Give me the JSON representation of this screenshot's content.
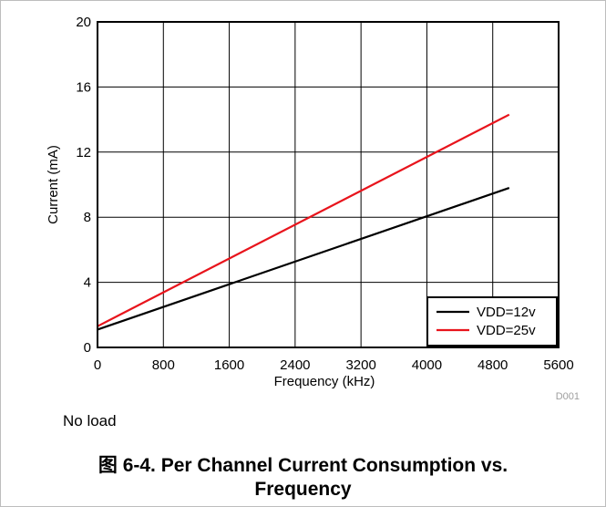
{
  "chart_data": {
    "type": "line",
    "title": "",
    "xlabel": "Frequency (kHz)",
    "ylabel": "Current (mA)",
    "xlim": [
      0,
      5600
    ],
    "ylim": [
      0,
      20
    ],
    "xticks": [
      0,
      800,
      1600,
      2400,
      3200,
      4000,
      4800,
      5600
    ],
    "yticks": [
      0,
      4,
      8,
      12,
      16,
      20
    ],
    "grid": true,
    "legend_position": "bottom-right",
    "series": [
      {
        "name": "VDD=12v",
        "color": "#000000",
        "x": [
          0,
          5000
        ],
        "y": [
          1.1,
          9.8
        ]
      },
      {
        "name": "VDD=25v",
        "color": "#e8141c",
        "x": [
          0,
          5000
        ],
        "y": [
          1.3,
          14.3
        ]
      }
    ],
    "figure_id": "D001"
  },
  "note": "No load",
  "caption": {
    "line1": "图 6-4. Per Channel Current Consumption vs.",
    "line2": "Frequency"
  }
}
